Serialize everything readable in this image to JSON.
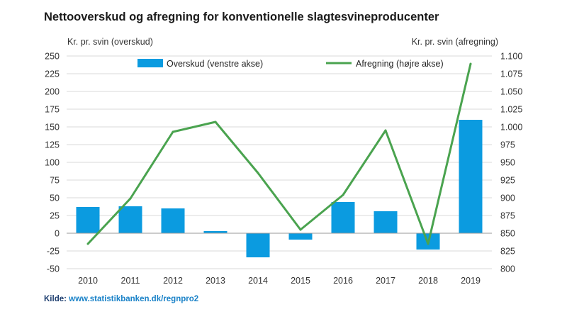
{
  "title": "Nettooverskud og afregning for konventionelle slagtesvineproducenter",
  "source": {
    "label": "Kilde:",
    "url_text": "www.statistikbanken.dk/regnpro2"
  },
  "colors": {
    "bar": "#0b9be0",
    "line": "#4aa34f",
    "grid": "#d9d9d9",
    "zero_line": "#9a9a9a"
  },
  "chart_data": {
    "type": "bar+line",
    "categories": [
      "2010",
      "2011",
      "2012",
      "2013",
      "2014",
      "2015",
      "2016",
      "2017",
      "2018",
      "2019"
    ],
    "series": [
      {
        "name": "Overskud (venstre akse)",
        "type": "bar",
        "axis": "left",
        "values": [
          37,
          38,
          35,
          3,
          -34,
          -9,
          44,
          31,
          -23,
          160
        ]
      },
      {
        "name": "Afregning (højre akse)",
        "type": "line",
        "axis": "right",
        "values": [
          835,
          899,
          993,
          1007,
          935,
          855,
          904,
          995,
          835,
          1089
        ]
      }
    ],
    "left_axis": {
      "label": "Kr. pr. svin (overskud)",
      "min": -50,
      "max": 250,
      "ticks": [
        "250",
        "225",
        "200",
        "175",
        "150",
        "125",
        "100",
        "75",
        "50",
        "25",
        "0",
        "-25",
        "-50"
      ]
    },
    "right_axis": {
      "label": "Kr. pr. svin (afregning)",
      "min": 800,
      "max": 1100,
      "ticks": [
        "1.100",
        "1.075",
        "1.050",
        "1.025",
        "1.000",
        "975",
        "950",
        "925",
        "900",
        "875",
        "850",
        "825",
        "800"
      ]
    },
    "grid": true,
    "legend": "top"
  }
}
